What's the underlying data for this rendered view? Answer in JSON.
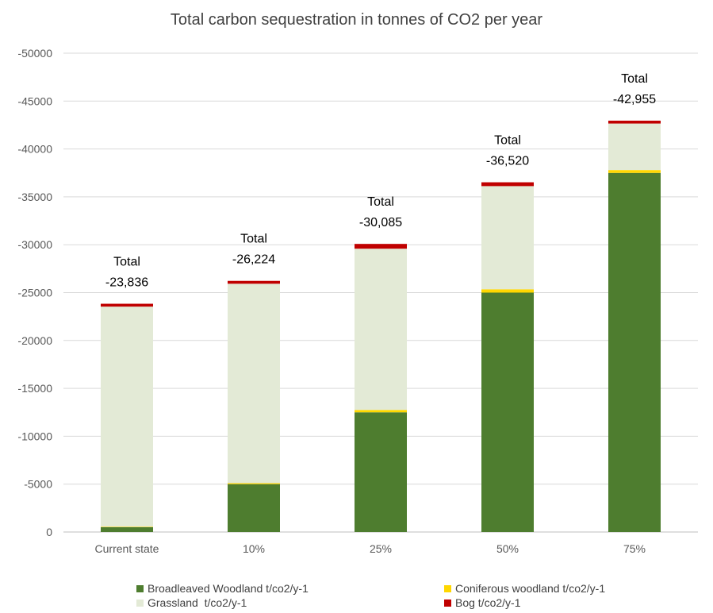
{
  "chart_data": {
    "type": "bar",
    "stacked": true,
    "title": "Total carbon sequestration in tonnes of CO2 per year",
    "categories": [
      "Current state",
      "10%",
      "25%",
      "50%",
      "75%"
    ],
    "ylim": [
      0,
      -50000
    ],
    "y_ticks": [
      "-50000",
      "-45000",
      "-40000",
      "-35000",
      "-30000",
      "-25000",
      "-20000",
      "-15000",
      "-10000",
      "-5000",
      "0"
    ],
    "y_tick_values": [
      -50000,
      -45000,
      -40000,
      -35000,
      -30000,
      -25000,
      -20000,
      -15000,
      -10000,
      -5000,
      0
    ],
    "grid": true,
    "legend_position": "bottom",
    "series": [
      {
        "name": "Broadleaved Woodland t/co2/y-1",
        "color": "#4e7d2f",
        "values": [
          -500,
          -5000,
          -12500,
          -25000,
          -37500
        ]
      },
      {
        "name": "Coniferous woodland t/co2/y-1",
        "color": "#ffd700",
        "values": [
          -50,
          -100,
          -250,
          -350,
          -300
        ]
      },
      {
        "name": "Grassland  t/co2/y-1",
        "color": "#e3ead6",
        "values": [
          -22986,
          -20824,
          -16835,
          -10770,
          -4855
        ]
      },
      {
        "name": "Bog t/co2/y-1",
        "color": "#c00000",
        "values": [
          -300,
          -300,
          -500,
          -400,
          -300
        ]
      }
    ],
    "total_label": "Total",
    "totals": [
      "-23,836",
      "-26,224",
      "-30,085",
      "-36,520",
      "-42,955"
    ]
  }
}
